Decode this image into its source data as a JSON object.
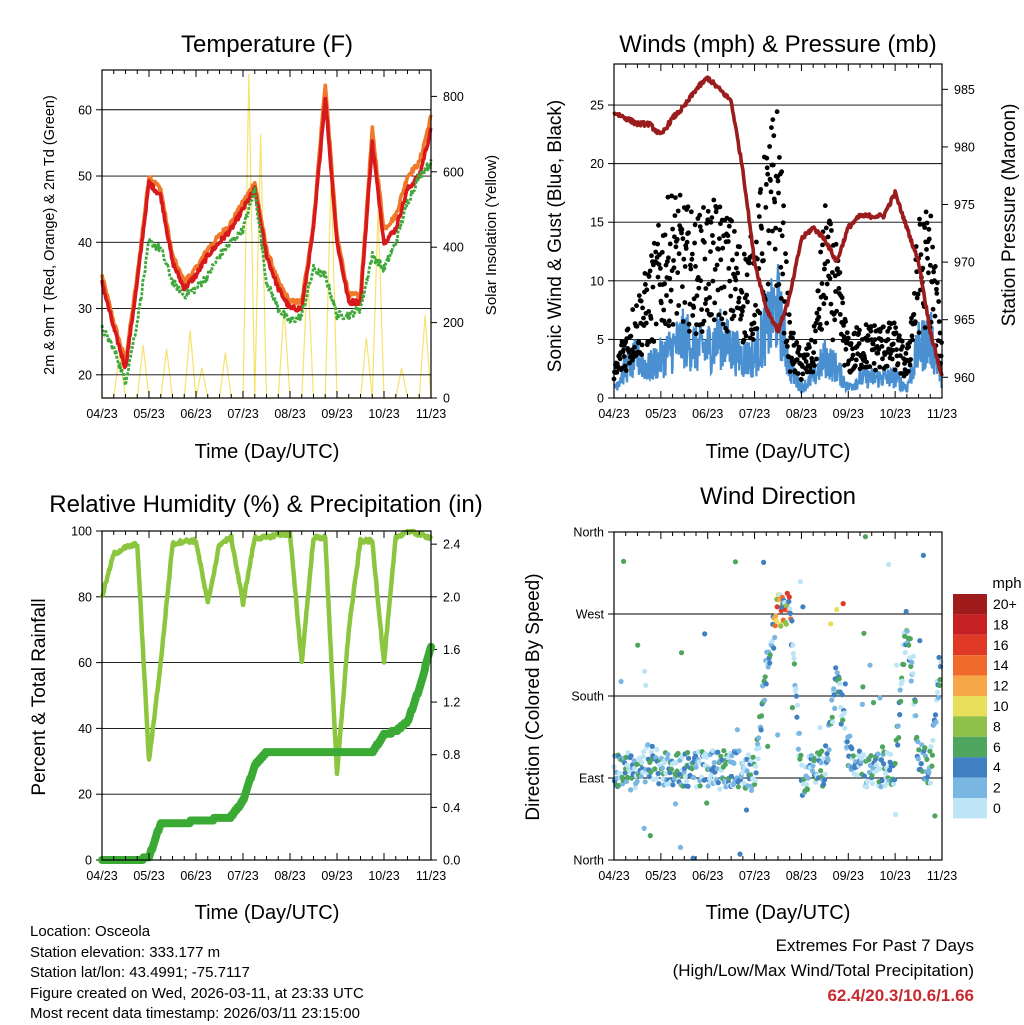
{
  "colors": {
    "temp_2m": "#d7191c",
    "temp_9m": "#f0782a",
    "dewpoint": "#3fa83a",
    "insolation": "#f5e36b",
    "wind": "#4a90d0",
    "gust": "#000000",
    "pressure": "#9b1c1c",
    "rh": "#8cc63f",
    "rain": "#3aaa35",
    "grid": "#000000"
  },
  "x_ticks": [
    "04/23",
    "05/23",
    "06/23",
    "07/23",
    "08/23",
    "09/23",
    "10/23",
    "11/23"
  ],
  "chart_data": [
    {
      "id": "temperature",
      "type": "line",
      "title": "Temperature (F)",
      "xlabel": "Time (Day/UTC)",
      "ylabel": "2m & 9m T (Red, Orange) & 2m Td (Green)",
      "ylabel_right": "Solar Insolation (Yellow)",
      "ylim": [
        16.5,
        66
      ],
      "y_ticks": [
        20,
        30,
        40,
        50,
        60
      ],
      "y2lim": [
        0,
        870
      ],
      "y2_ticks": [
        0,
        200,
        400,
        600,
        800
      ],
      "x": [
        0,
        0.25,
        0.5,
        0.75,
        1,
        1.25,
        1.5,
        1.75,
        2,
        2.25,
        2.5,
        2.75,
        3,
        3.25,
        3.5,
        3.75,
        4,
        4.25,
        4.5,
        4.75,
        5,
        5.25,
        5.5,
        5.75,
        6,
        6.25,
        6.5,
        6.75,
        7
      ],
      "series": [
        {
          "name": "2m T",
          "values": [
            34,
            27,
            21,
            34,
            49,
            47,
            37,
            33,
            35,
            38,
            40,
            42,
            45,
            48,
            38,
            33,
            30,
            30,
            42,
            62,
            40,
            31,
            31,
            55,
            40,
            42,
            48,
            50,
            57
          ]
        },
        {
          "name": "9m T",
          "values": [
            35,
            28,
            22,
            35,
            50,
            48,
            38,
            34,
            36,
            39,
            41,
            43,
            46,
            49,
            39,
            34,
            31,
            31,
            43,
            64,
            41,
            32,
            32,
            57,
            42,
            44,
            50,
            52,
            59
          ]
        },
        {
          "name": "2m Td",
          "values": [
            27,
            24,
            19,
            28,
            40,
            39,
            34,
            32,
            33,
            35,
            38,
            40,
            42,
            48,
            34,
            30,
            28,
            29,
            36,
            35,
            29,
            29,
            30,
            38,
            36,
            40,
            46,
            50,
            52
          ]
        }
      ]
    },
    {
      "id": "winds",
      "type": "line",
      "title": "Winds (mph) & Pressure (mb)",
      "xlabel": "Time (Day/UTC)",
      "ylabel": "Sonic Wind & Gust (Blue, Black)",
      "ylabel_right": "Station Pressure (Maroon)",
      "ylim": [
        0,
        28.5
      ],
      "y_ticks": [
        0,
        5,
        10,
        15,
        20,
        25
      ],
      "y2lim": [
        958.2,
        987.2
      ],
      "y2_ticks": [
        960,
        965,
        970,
        975,
        980,
        985
      ],
      "x": [
        0,
        0.25,
        0.5,
        0.75,
        1,
        1.25,
        1.5,
        1.75,
        2,
        2.25,
        2.5,
        2.75,
        3,
        3.25,
        3.5,
        3.75,
        4,
        4.25,
        4.5,
        4.75,
        5,
        5.25,
        5.5,
        5.75,
        6,
        6.25,
        6.5,
        6.75,
        7
      ],
      "series": [
        {
          "name": "Sonic Wind",
          "values": [
            1,
            3,
            4,
            3,
            4,
            5,
            6,
            5,
            5,
            6,
            5,
            4,
            4,
            7,
            9,
            3,
            1,
            2,
            4,
            3,
            1,
            2,
            2,
            2,
            2,
            1,
            5,
            6,
            2
          ]
        },
        {
          "name": "Gust",
          "values": [
            2,
            5,
            7,
            9,
            12,
            14,
            13,
            12,
            13,
            13,
            12,
            10,
            11,
            17,
            20,
            5,
            3,
            4,
            13,
            10,
            4,
            5,
            5,
            5,
            5,
            3,
            12,
            13,
            4
          ]
        },
        {
          "name": "Station Pressure",
          "values": [
            983,
            982.5,
            982,
            982,
            981,
            982.5,
            983.5,
            985,
            986,
            985,
            984,
            978,
            970,
            966,
            964,
            967,
            972,
            973,
            972,
            970,
            973,
            974,
            974,
            974,
            976,
            973,
            970,
            964,
            960
          ]
        }
      ]
    },
    {
      "id": "humidity",
      "type": "line",
      "title": "Relative Humidity (%) & Precipitation (in)",
      "xlabel": "Time (Day/UTC)",
      "ylabel": "Percent & Total Rainfall",
      "ylim": [
        0,
        100
      ],
      "y_ticks": [
        0,
        20,
        40,
        60,
        80,
        100
      ],
      "y2lim": [
        0,
        2.5
      ],
      "y2_ticks": [
        "0.0",
        "0.4",
        "0.8",
        "1.2",
        "1.6",
        "2.0",
        "2.4"
      ],
      "x": [
        0,
        0.25,
        0.5,
        0.75,
        1,
        1.25,
        1.5,
        1.75,
        2,
        2.25,
        2.5,
        2.75,
        3,
        3.25,
        3.5,
        3.75,
        4,
        4.25,
        4.5,
        4.75,
        5,
        5.25,
        5.5,
        5.75,
        6,
        6.25,
        6.5,
        6.75,
        7
      ],
      "series": [
        {
          "name": "Relative Humidity",
          "values": [
            80,
            93,
            95,
            96,
            30,
            60,
            96,
            97,
            97,
            78,
            96,
            98,
            78,
            98,
            98,
            99,
            99,
            60,
            98,
            98,
            26,
            70,
            97,
            97,
            60,
            98,
            100,
            99,
            98
          ]
        },
        {
          "name": "Total Rainfall",
          "values": [
            0,
            0,
            0,
            0,
            0.02,
            0.28,
            0.28,
            0.28,
            0.3,
            0.3,
            0.32,
            0.33,
            0.45,
            0.72,
            0.82,
            0.82,
            0.82,
            0.82,
            0.82,
            0.82,
            0.82,
            0.82,
            0.82,
            0.82,
            0.95,
            0.98,
            1.05,
            1.3,
            1.62
          ]
        }
      ]
    },
    {
      "id": "wind_direction",
      "type": "scatter",
      "title": "Wind Direction",
      "xlabel": "Time (Day/UTC)",
      "ylabel": "Direction (Colored By Speed)",
      "y_ticks": [
        "North",
        "West",
        "South",
        "East",
        "North"
      ],
      "legend_title": "mph",
      "legend_labels": [
        "20+",
        "18",
        "16",
        "14",
        "12",
        "10",
        "8",
        "6",
        "4",
        "2",
        "0"
      ],
      "legend_colors": [
        "#a01c1c",
        "#c62023",
        "#e03a26",
        "#f06a2c",
        "#f7a748",
        "#e8df5a",
        "#8fc04a",
        "#4ea55d",
        "#3f7fc2",
        "#7ab6e2",
        "#bde5f6"
      ],
      "x": [
        0,
        0.25,
        0.5,
        0.75,
        1,
        1.25,
        1.5,
        1.75,
        2,
        2.25,
        2.5,
        2.75,
        3,
        3.25,
        3.5,
        3.75,
        4,
        4.25,
        4.5,
        4.75,
        5,
        5.25,
        5.5,
        5.75,
        6,
        6.25,
        6.5,
        6.75,
        7
      ],
      "series": [
        {
          "name": "Direction (deg)",
          "values": [
            95,
            100,
            90,
            110,
            100,
            100,
            100,
            100,
            100,
            100,
            100,
            100,
            95,
            210,
            275,
            280,
            90,
            100,
            100,
            200,
            120,
            100,
            100,
            100,
            100,
            270,
            110,
            100,
            240
          ]
        }
      ]
    }
  ],
  "footer": {
    "location": "Location: Osceola",
    "elevation": "Station elevation: 333.177 m",
    "latlon": "Station lat/lon: 43.4991; -75.7117",
    "created": "Figure created on Wed, 2026-03-11, at 23:33 UTC",
    "timestamp": "Most recent data timestamp: 2026/03/11 23:15:00"
  },
  "extremes": {
    "title": "Extremes For Past 7 Days",
    "subtitle": "(High/Low/Max Wind/Total Precipitation)",
    "values": "62.4/20.3/10.6/1.66"
  }
}
